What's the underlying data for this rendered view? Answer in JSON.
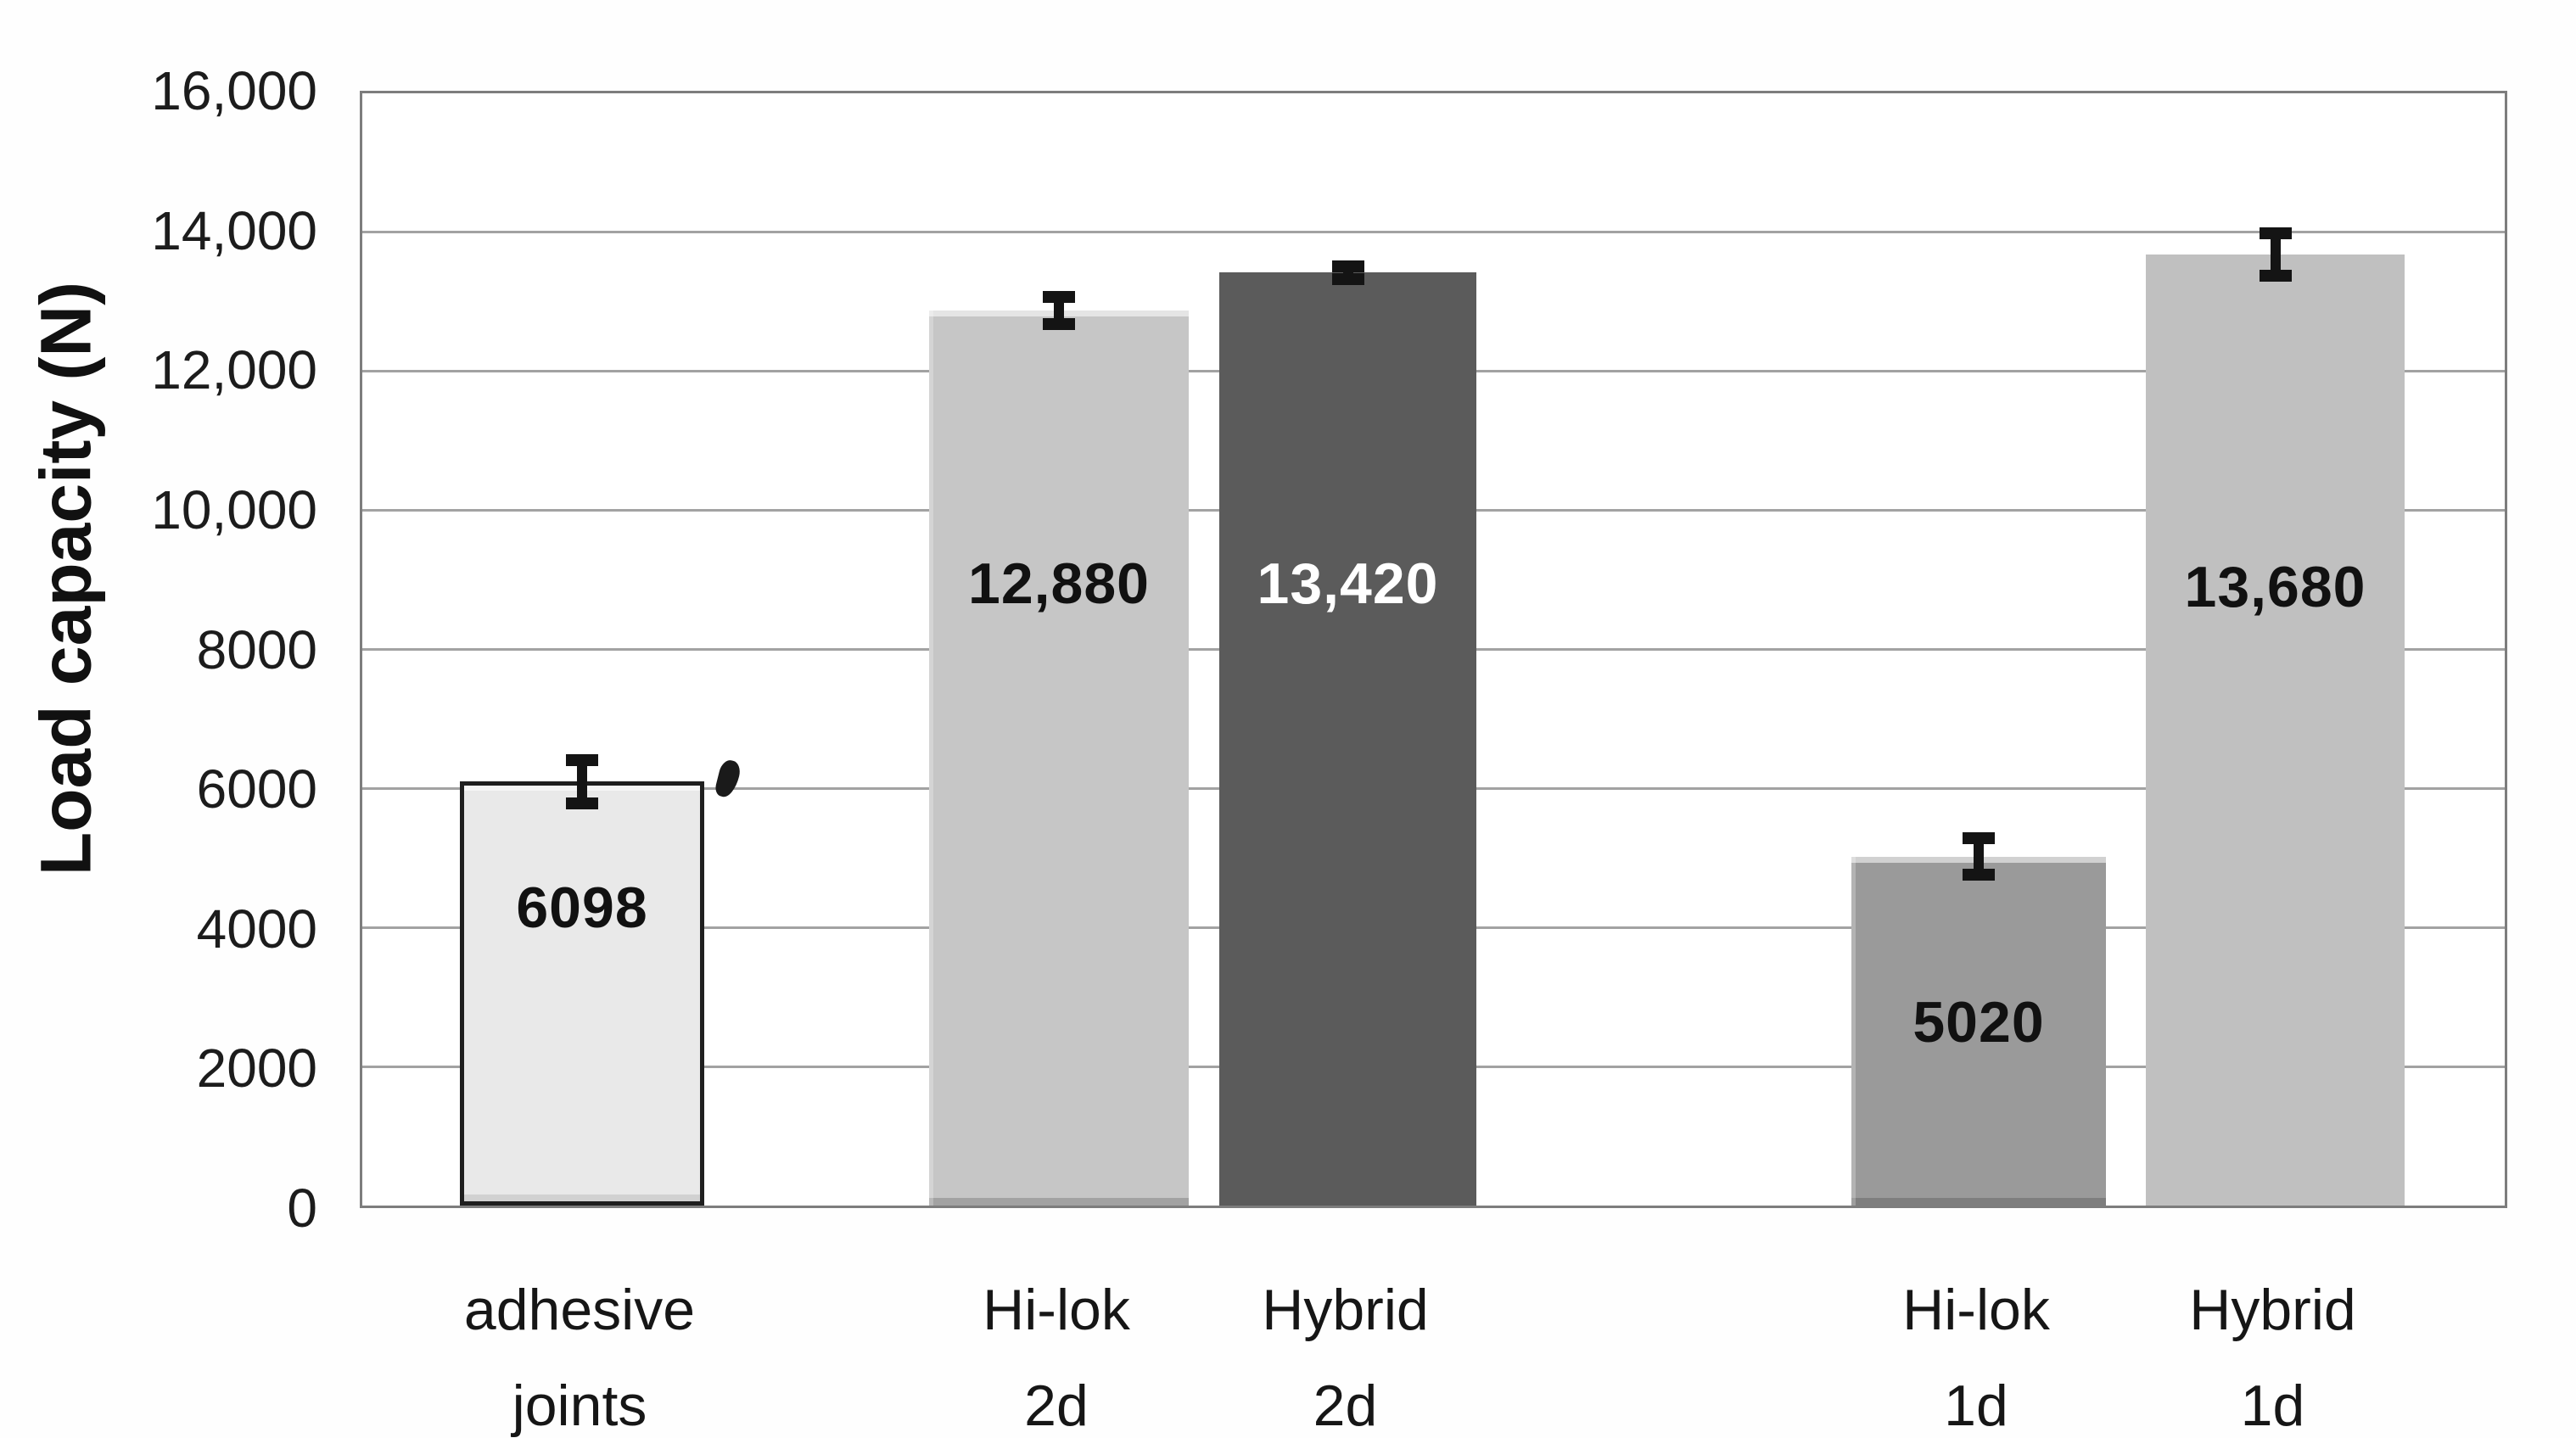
{
  "chart_data": {
    "type": "bar",
    "title": "",
    "xlabel": "",
    "ylabel": "Load capacity (N)",
    "ylim": [
      0,
      16000
    ],
    "ytick_interval": 2000,
    "ytick_labels": [
      "16,000",
      "14,000",
      "12,000",
      "10,000",
      "8000",
      "6000",
      "4000",
      "2000",
      "0"
    ],
    "grid": "horizontal",
    "legend_position": "none",
    "categories": [
      "adhesive joints",
      "Hi-lok 2d",
      "Hybrid 2d",
      "Hi-lok 1d",
      "Hybrid 1d"
    ],
    "values": [
      6098,
      12880,
      13420,
      5020,
      13680
    ],
    "bar_value_labels": [
      "6098",
      "12,880",
      "13,420",
      "5020",
      "13,680"
    ],
    "error_bar_halfwidths_N_estimated": [
      400,
      280,
      175,
      345,
      395
    ],
    "bar_fill_colors": [
      "#e9e9e9",
      "#c6c6c6",
      "#5b5b5b",
      "#9a9a9a",
      "#c0c0c0"
    ],
    "value_label_colors": [
      "#111111",
      "#111111",
      "#ffffff",
      "#111111",
      "#111111"
    ],
    "frame_color": "#7d7d7d",
    "gridline_color": "#a2a2a2",
    "error_bar_color": "#141414",
    "background_color": "#ffffff"
  }
}
